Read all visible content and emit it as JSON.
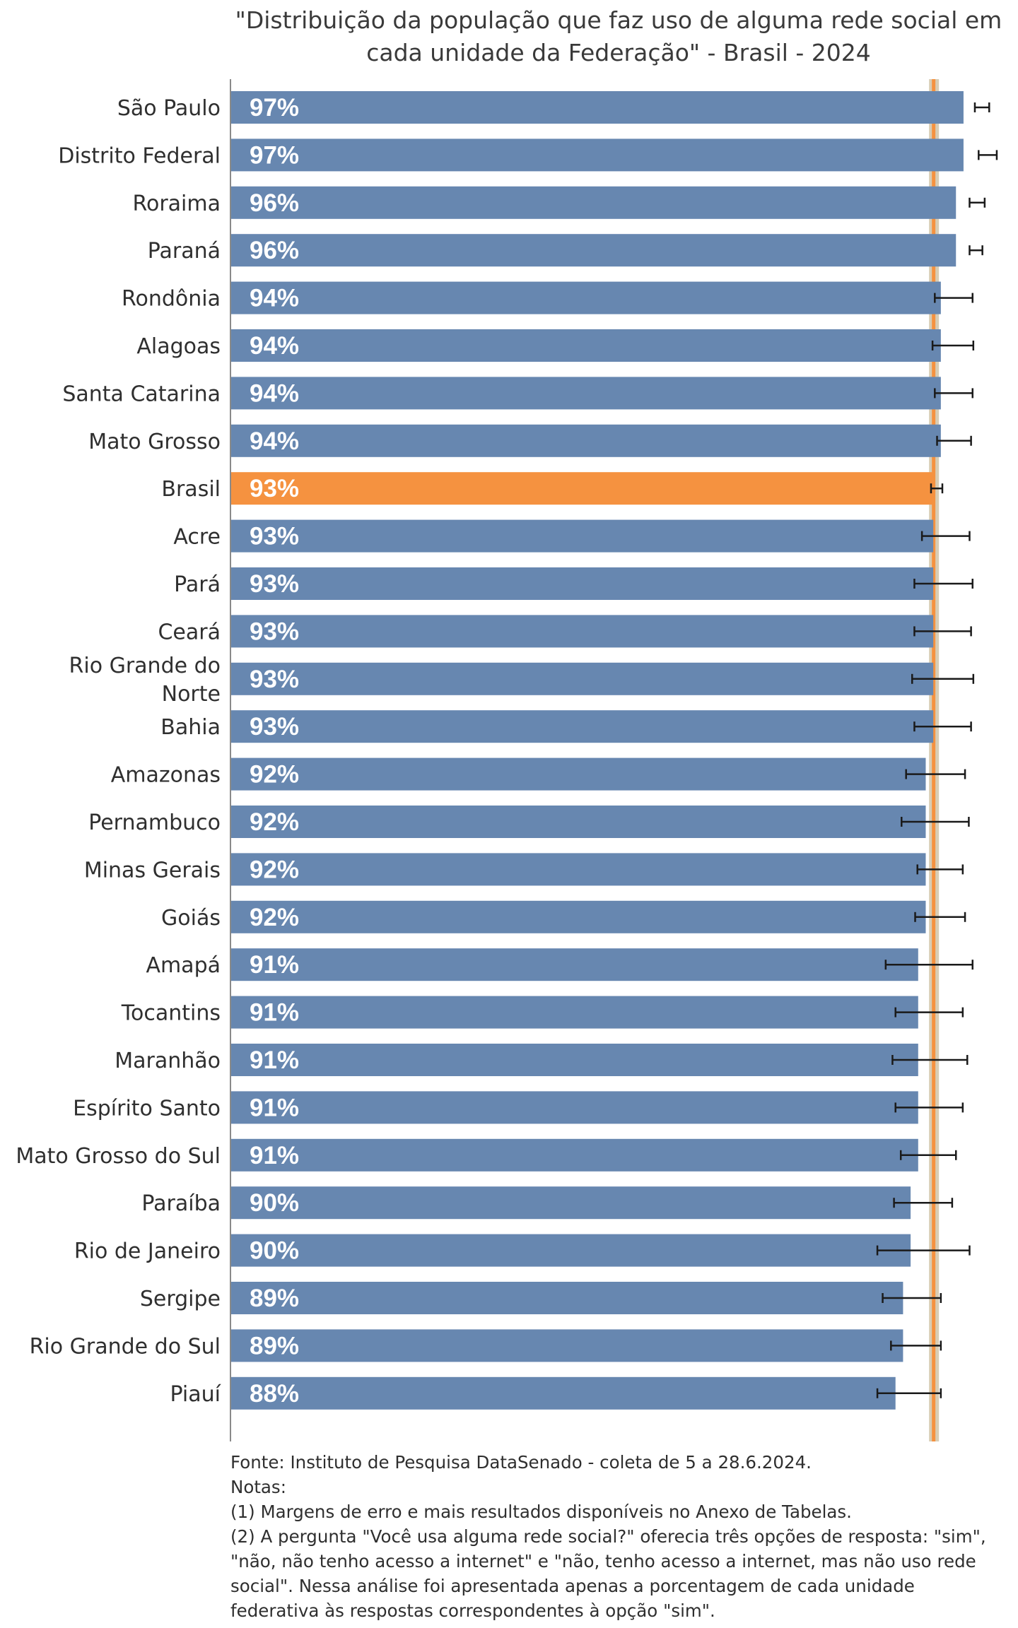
{
  "chart_data": {
    "type": "bar",
    "orientation": "horizontal",
    "title": "\"Distribuição da população que faz uso de alguma rede social em cada unidade da Federação\" - Brasil - 2024",
    "categories": [
      "São Paulo",
      "Distrito Federal",
      "Roraima",
      "Paraná",
      "Rondônia",
      "Alagoas",
      "Santa Catarina",
      "Mato Grosso",
      "Brasil",
      "Acre",
      "Pará",
      "Ceará",
      "Rio Grande do Norte",
      "Bahia",
      "Amazonas",
      "Pernambuco",
      "Minas Gerais",
      "Goiás",
      "Amapá",
      "Tocantins",
      "Maranhão",
      "Espírito Santo",
      "Mato Grosso do Sul",
      "Paraíba",
      "Rio de Janeiro",
      "Sergipe",
      "Rio Grande do Sul",
      "Piauí"
    ],
    "category_lines": {
      "Rio Grande do Norte": [
        "Rio Grande do",
        "Norte"
      ]
    },
    "values": [
      97,
      97,
      96,
      96,
      94,
      94,
      94,
      94,
      93,
      93,
      93,
      93,
      93,
      93,
      92,
      92,
      92,
      92,
      91,
      91,
      91,
      91,
      91,
      90,
      90,
      89,
      89,
      88
    ],
    "value_labels": [
      "97%",
      "97%",
      "96%",
      "96%",
      "94%",
      "94%",
      "94%",
      "94%",
      "93%",
      "93%",
      "93%",
      "93%",
      "93%",
      "93%",
      "92%",
      "92%",
      "92%",
      "92%",
      "91%",
      "91%",
      "91%",
      "91%",
      "91%",
      "90%",
      "90%",
      "89%",
      "89%",
      "88%"
    ],
    "error_low": [
      98.5,
      99.0,
      97.8,
      97.8,
      93.2,
      92.9,
      93.2,
      93.5,
      92.7,
      91.5,
      90.5,
      90.5,
      90.2,
      90.5,
      89.4,
      88.8,
      90.9,
      90.6,
      86.7,
      88.0,
      87.6,
      88.0,
      88.7,
      87.8,
      85.6,
      86.3,
      87.4,
      85.6
    ],
    "error_high": [
      100.4,
      101.4,
      99.8,
      99.5,
      98.2,
      98.3,
      98.2,
      98.0,
      94.2,
      97.8,
      98.2,
      98.0,
      98.3,
      98.0,
      97.2,
      97.7,
      96.9,
      97.2,
      98.2,
      96.9,
      97.5,
      96.9,
      96.0,
      95.5,
      97.8,
      94.0,
      94.0,
      94.0
    ],
    "highlight_category": "Brasil",
    "reference_value": 93,
    "xlim": [
      0,
      100
    ],
    "colors": {
      "bar": "#6787b0",
      "highlight": "#f59240",
      "reference_line": "#f59240",
      "reference_band": "#d8cdb5",
      "error_bar": "#1a1a1a",
      "axis": "#8a8a8a"
    }
  },
  "footnote": {
    "source": "Fonte: Instituto de Pesquisa DataSenado - coleta de 5 a 28.6.2024.",
    "notes_header": "Notas:",
    "note1": "(1) Margens de erro e mais resultados disponíveis no Anexo de Tabelas.",
    "note2": "(2) A pergunta \"Você usa alguma rede social?\" oferecia três opções de resposta: \"sim\", \"não, não tenho acesso a internet\" e \"não, tenho acesso a internet, mas não uso rede social\". Nessa análise foi apresentada apenas a porcentagem de cada unidade federativa às respostas correspondentes à opção \"sim\"."
  }
}
